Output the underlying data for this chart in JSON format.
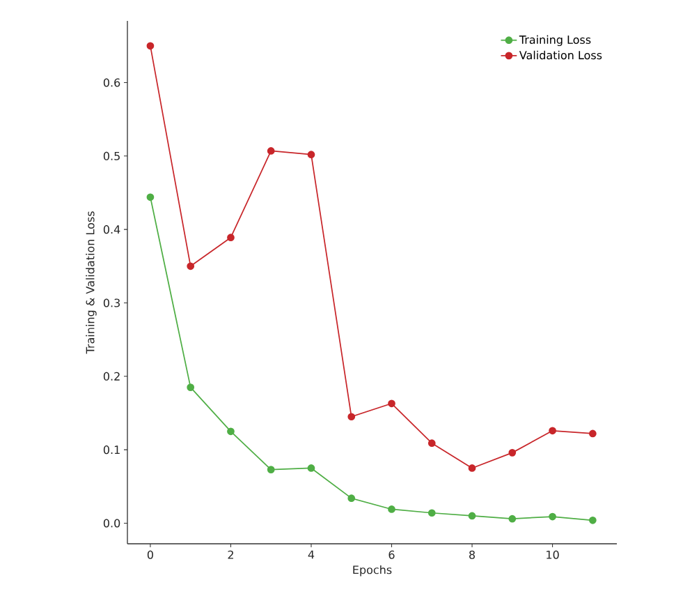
{
  "chart_data": {
    "type": "line",
    "xlabel": "Epochs",
    "ylabel": "Training & Validation Loss",
    "x": [
      0,
      1,
      2,
      3,
      4,
      5,
      6,
      7,
      8,
      9,
      10,
      11
    ],
    "series": [
      {
        "name": "Training Loss",
        "color": "#4fae45",
        "values": [
          0.444,
          0.185,
          0.125,
          0.073,
          0.075,
          0.034,
          0.019,
          0.014,
          0.01,
          0.006,
          0.009,
          0.004
        ]
      },
      {
        "name": "Validation Loss",
        "color": "#c8262a",
        "values": [
          0.65,
          0.35,
          0.389,
          0.507,
          0.502,
          0.145,
          0.163,
          0.109,
          0.075,
          0.096,
          0.126,
          0.122
        ]
      }
    ],
    "xlim": [
      -0.57,
      11.6
    ],
    "ylim": [
      -0.028,
      0.684
    ],
    "xticks": [
      0,
      2,
      4,
      6,
      8,
      10
    ],
    "yticks": [
      {
        "value": 0,
        "label": "0.0"
      },
      0.1,
      0.2,
      0.3,
      0.4,
      0.5,
      0.6
    ],
    "marker": "circle",
    "line_style": "solid",
    "legend": "top right",
    "grid": false
  }
}
